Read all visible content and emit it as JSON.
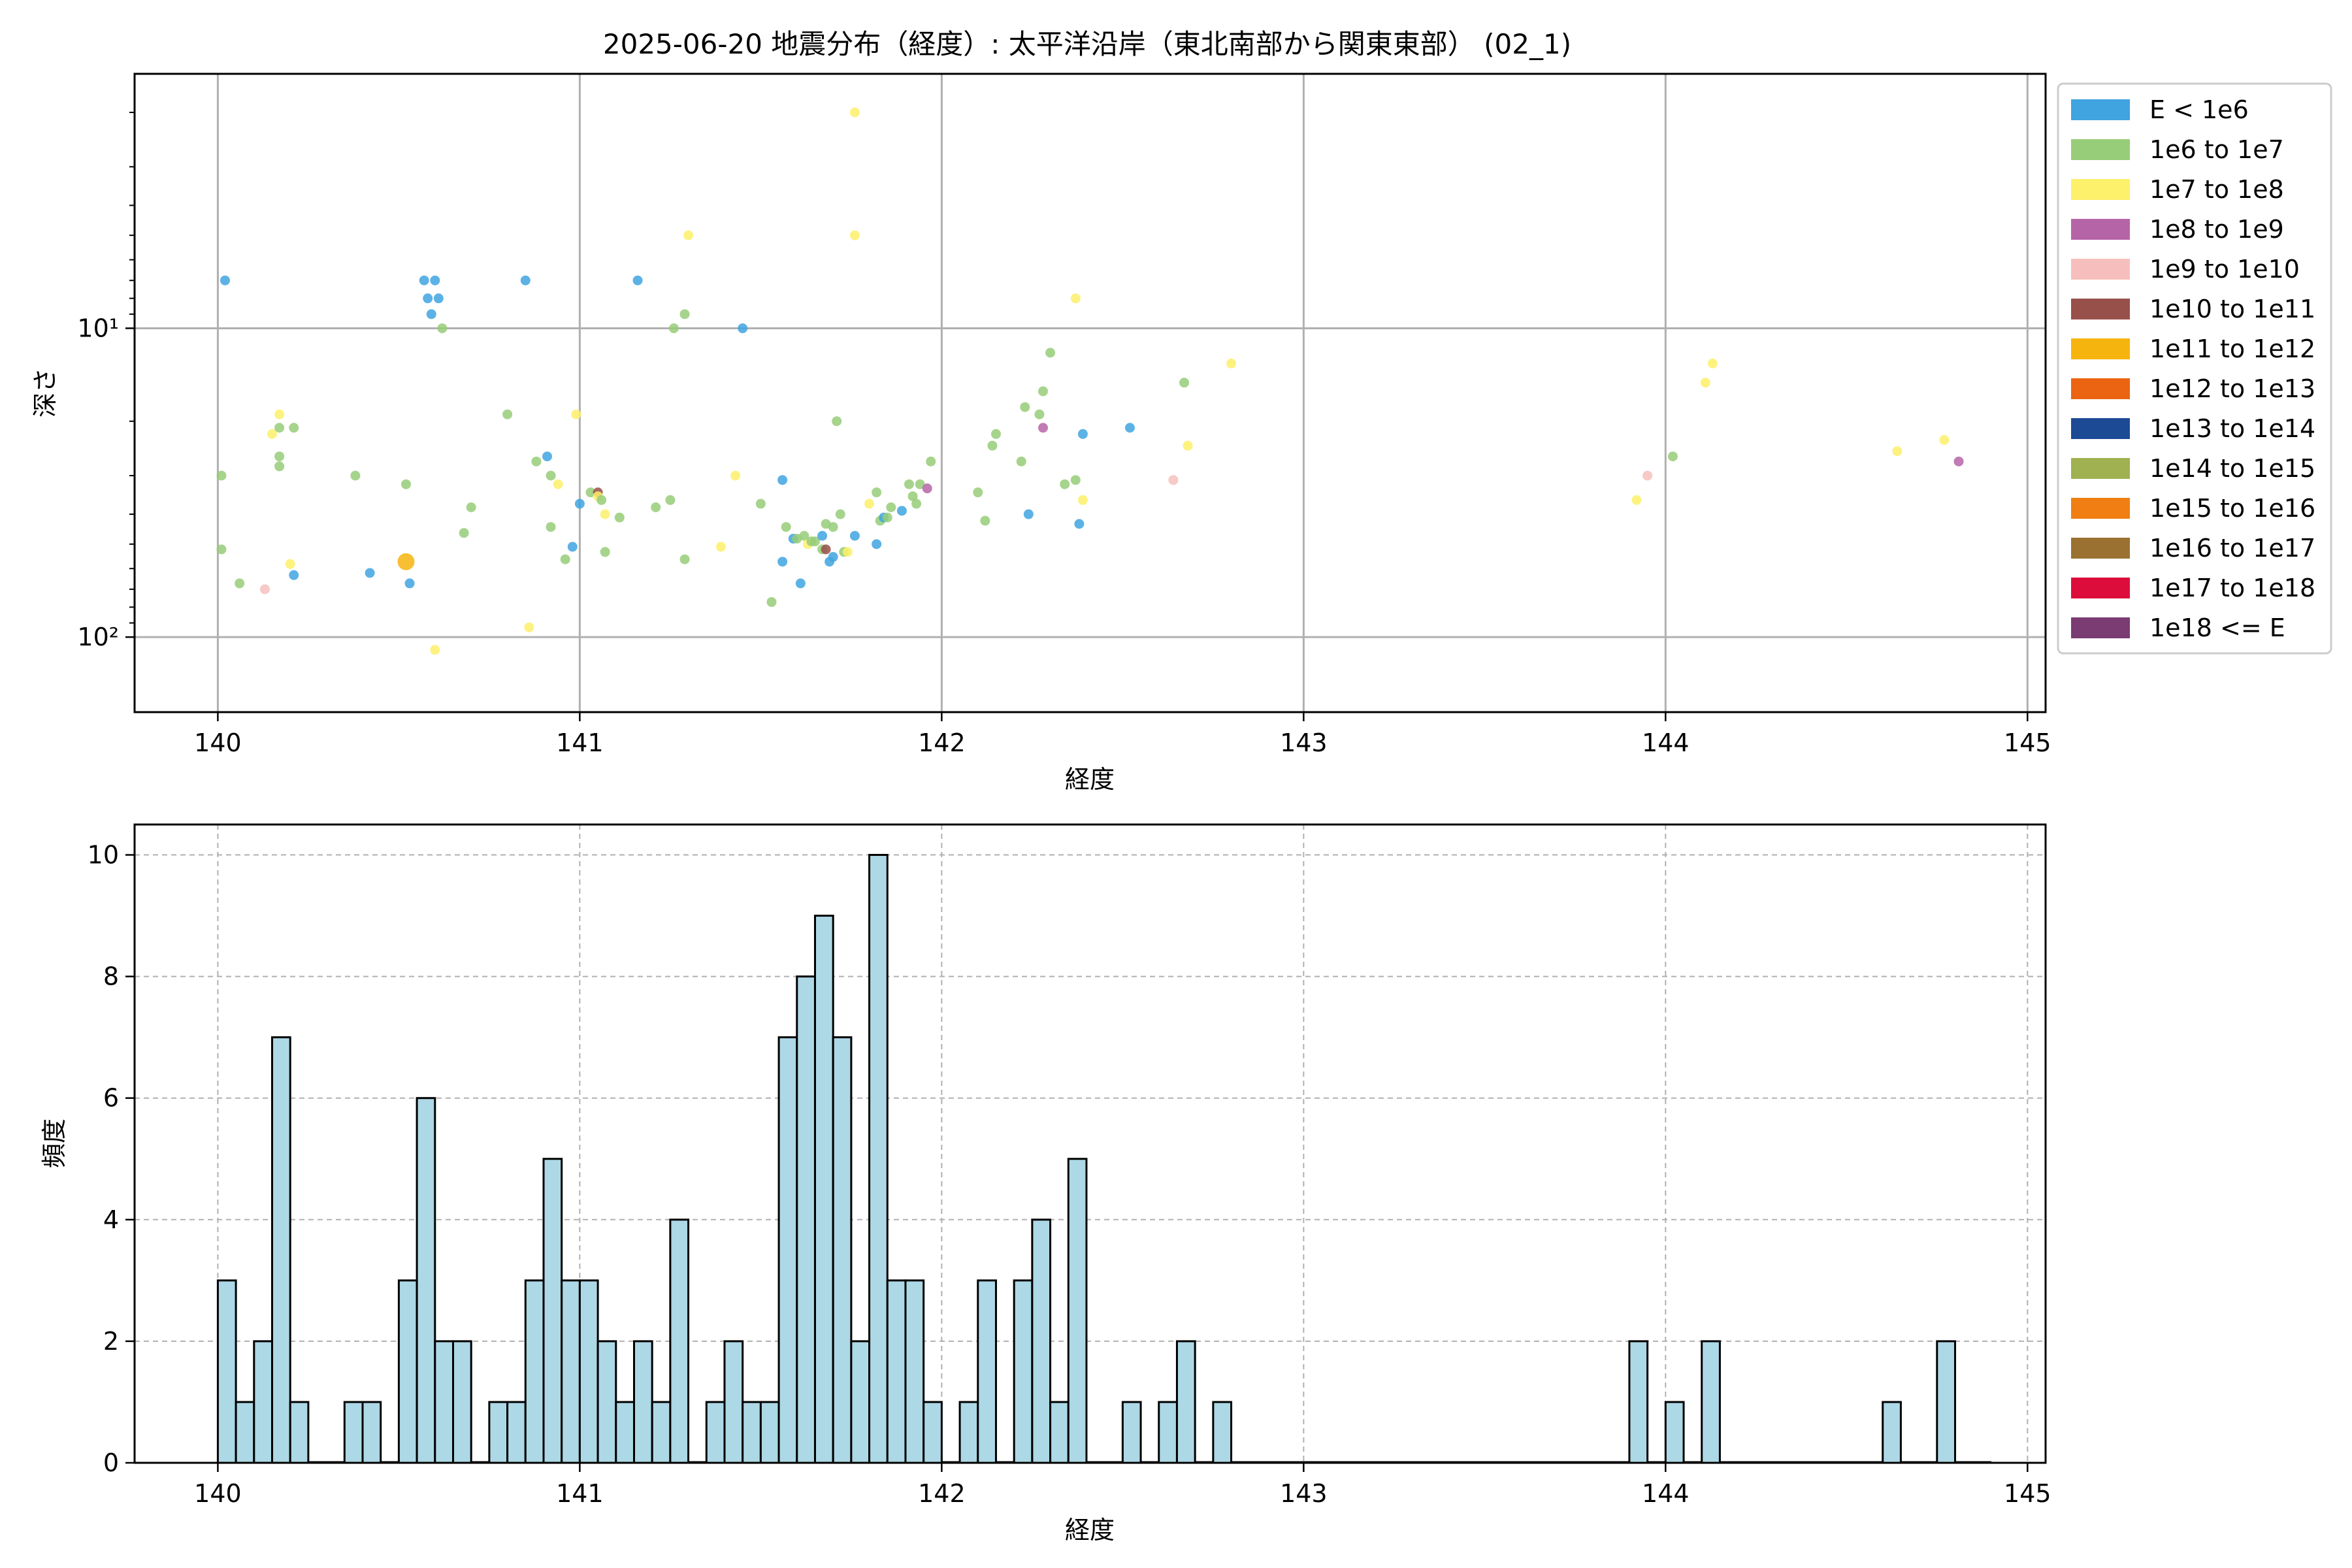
{
  "chart_data": [
    {
      "type": "scatter",
      "title": "2025-06-20 地震分布（経度）: 太平洋沿岸（東北南部から関東東部） (02_1)",
      "xlabel": "経度",
      "ylabel": "深さ",
      "xlim": [
        139.77,
        145.05
      ],
      "ylim": [
        175,
        1.5
      ],
      "yscale": "log",
      "yaxis_inverted": true,
      "grid": true,
      "x_ticks": [
        "140",
        "141",
        "142",
        "143",
        "144",
        "145"
      ],
      "y_ticks": [
        {
          "value": 10,
          "label": "10¹"
        },
        {
          "value": 100,
          "label": "10²"
        }
      ],
      "legend_position": "outside-right",
      "legend": [
        {
          "label": "E < 1e6",
          "color": "#3fa4e0"
        },
        {
          "label": "1e6 to 1e7",
          "color": "#97cd78"
        },
        {
          "label": "1e7 to 1e8",
          "color": "#fdf06a"
        },
        {
          "label": "1e8 to 1e9",
          "color": "#b664a8"
        },
        {
          "label": "1e9 to 1e10",
          "color": "#f6bfbd"
        },
        {
          "label": "1e10 to 1e11",
          "color": "#98504a"
        },
        {
          "label": "1e11 to 1e12",
          "color": "#f6b40e"
        },
        {
          "label": "1e12 to 1e13",
          "color": "#ea6412"
        },
        {
          "label": "1e13 to 1e14",
          "color": "#1c4a94"
        },
        {
          "label": "1e14 to 1e15",
          "color": "#9fb150"
        },
        {
          "label": "1e15 to 1e16",
          "color": "#f07e12"
        },
        {
          "label": "1e16 to 1e17",
          "color": "#9a7131"
        },
        {
          "label": "1e17 to 1e18",
          "color": "#dd0d3b"
        },
        {
          "label": "1e18 <= E",
          "color": "#7a3c72"
        }
      ],
      "points": [
        {
          "x": 140.02,
          "y": 7.0,
          "c": 0
        },
        {
          "x": 140.01,
          "y": 30,
          "c": 1
        },
        {
          "x": 140.01,
          "y": 52,
          "c": 1
        },
        {
          "x": 140.06,
          "y": 67,
          "c": 1
        },
        {
          "x": 140.13,
          "y": 70,
          "c": 4
        },
        {
          "x": 140.15,
          "y": 22,
          "c": 2
        },
        {
          "x": 140.17,
          "y": 19,
          "c": 2
        },
        {
          "x": 140.17,
          "y": 21,
          "c": 1
        },
        {
          "x": 140.17,
          "y": 26,
          "c": 1
        },
        {
          "x": 140.17,
          "y": 28,
          "c": 1
        },
        {
          "x": 140.2,
          "y": 58,
          "c": 2
        },
        {
          "x": 140.21,
          "y": 63,
          "c": 0
        },
        {
          "x": 140.21,
          "y": 21,
          "c": 1
        },
        {
          "x": 140.38,
          "y": 30,
          "c": 1
        },
        {
          "x": 140.42,
          "y": 62,
          "c": 0
        },
        {
          "x": 140.52,
          "y": 57,
          "c": 6,
          "big": true
        },
        {
          "x": 140.52,
          "y": 32,
          "c": 1
        },
        {
          "x": 140.53,
          "y": 67,
          "c": 0
        },
        {
          "x": 140.57,
          "y": 7.0,
          "c": 0
        },
        {
          "x": 140.58,
          "y": 8.0,
          "c": 0
        },
        {
          "x": 140.59,
          "y": 9.0,
          "c": 0
        },
        {
          "x": 140.6,
          "y": 7.0,
          "c": 0
        },
        {
          "x": 140.61,
          "y": 8.0,
          "c": 0
        },
        {
          "x": 140.62,
          "y": 10.0,
          "c": 1
        },
        {
          "x": 140.6,
          "y": 110,
          "c": 2
        },
        {
          "x": 140.68,
          "y": 46,
          "c": 1
        },
        {
          "x": 140.7,
          "y": 38,
          "c": 1
        },
        {
          "x": 140.8,
          "y": 19,
          "c": 1
        },
        {
          "x": 140.85,
          "y": 7.0,
          "c": 0
        },
        {
          "x": 140.86,
          "y": 93,
          "c": 2
        },
        {
          "x": 140.88,
          "y": 27,
          "c": 1
        },
        {
          "x": 140.91,
          "y": 26,
          "c": 0
        },
        {
          "x": 140.92,
          "y": 30,
          "c": 1
        },
        {
          "x": 140.92,
          "y": 44,
          "c": 1
        },
        {
          "x": 140.94,
          "y": 32,
          "c": 2
        },
        {
          "x": 140.96,
          "y": 56,
          "c": 1
        },
        {
          "x": 140.98,
          "y": 51,
          "c": 0
        },
        {
          "x": 140.99,
          "y": 19,
          "c": 2
        },
        {
          "x": 141.0,
          "y": 37,
          "c": 0
        },
        {
          "x": 141.03,
          "y": 34,
          "c": 1
        },
        {
          "x": 141.05,
          "y": 34,
          "c": 5
        },
        {
          "x": 141.05,
          "y": 35,
          "c": 2
        },
        {
          "x": 141.06,
          "y": 36,
          "c": 1
        },
        {
          "x": 141.07,
          "y": 40,
          "c": 2
        },
        {
          "x": 141.07,
          "y": 53,
          "c": 1
        },
        {
          "x": 141.11,
          "y": 41,
          "c": 1
        },
        {
          "x": 141.16,
          "y": 7.0,
          "c": 0
        },
        {
          "x": 141.21,
          "y": 38,
          "c": 1
        },
        {
          "x": 141.25,
          "y": 36,
          "c": 1
        },
        {
          "x": 141.26,
          "y": 10.0,
          "c": 1
        },
        {
          "x": 141.29,
          "y": 9.0,
          "c": 1
        },
        {
          "x": 141.29,
          "y": 56,
          "c": 1
        },
        {
          "x": 141.3,
          "y": 5.0,
          "c": 2
        },
        {
          "x": 141.39,
          "y": 51,
          "c": 2
        },
        {
          "x": 141.43,
          "y": 30,
          "c": 2
        },
        {
          "x": 141.45,
          "y": 10.0,
          "c": 0
        },
        {
          "x": 141.5,
          "y": 37,
          "c": 1
        },
        {
          "x": 141.53,
          "y": 77,
          "c": 1
        },
        {
          "x": 141.56,
          "y": 31,
          "c": 0
        },
        {
          "x": 141.56,
          "y": 57,
          "c": 0
        },
        {
          "x": 141.57,
          "y": 44,
          "c": 1
        },
        {
          "x": 141.59,
          "y": 48,
          "c": 0
        },
        {
          "x": 141.6,
          "y": 48,
          "c": 1
        },
        {
          "x": 141.61,
          "y": 67,
          "c": 0
        },
        {
          "x": 141.62,
          "y": 47,
          "c": 1
        },
        {
          "x": 141.63,
          "y": 50,
          "c": 2
        },
        {
          "x": 141.64,
          "y": 49,
          "c": 1
        },
        {
          "x": 141.65,
          "y": 49,
          "c": 1
        },
        {
          "x": 141.67,
          "y": 52,
          "c": 1
        },
        {
          "x": 141.67,
          "y": 47,
          "c": 0
        },
        {
          "x": 141.68,
          "y": 43,
          "c": 1
        },
        {
          "x": 141.68,
          "y": 52,
          "c": 5
        },
        {
          "x": 141.69,
          "y": 57,
          "c": 0
        },
        {
          "x": 141.7,
          "y": 55,
          "c": 0
        },
        {
          "x": 141.7,
          "y": 44,
          "c": 1
        },
        {
          "x": 141.71,
          "y": 20,
          "c": 1
        },
        {
          "x": 141.72,
          "y": 40,
          "c": 1
        },
        {
          "x": 141.73,
          "y": 53,
          "c": 1
        },
        {
          "x": 141.74,
          "y": 53,
          "c": 2
        },
        {
          "x": 141.76,
          "y": 47,
          "c": 0
        },
        {
          "x": 141.76,
          "y": 2.0,
          "c": 2
        },
        {
          "x": 141.76,
          "y": 5.0,
          "c": 2
        },
        {
          "x": 141.8,
          "y": 37,
          "c": 2
        },
        {
          "x": 141.82,
          "y": 34,
          "c": 1
        },
        {
          "x": 141.83,
          "y": 42,
          "c": 1
        },
        {
          "x": 141.84,
          "y": 41,
          "c": 0
        },
        {
          "x": 141.82,
          "y": 50,
          "c": 0
        },
        {
          "x": 141.85,
          "y": 41,
          "c": 1
        },
        {
          "x": 141.86,
          "y": 38,
          "c": 1
        },
        {
          "x": 141.89,
          "y": 39,
          "c": 0
        },
        {
          "x": 141.91,
          "y": 32,
          "c": 1
        },
        {
          "x": 141.92,
          "y": 35,
          "c": 1
        },
        {
          "x": 141.93,
          "y": 37,
          "c": 1
        },
        {
          "x": 141.94,
          "y": 32,
          "c": 1
        },
        {
          "x": 141.96,
          "y": 33,
          "c": 3
        },
        {
          "x": 141.97,
          "y": 27,
          "c": 1
        },
        {
          "x": 142.1,
          "y": 34,
          "c": 1
        },
        {
          "x": 142.12,
          "y": 42,
          "c": 1
        },
        {
          "x": 142.14,
          "y": 24,
          "c": 1
        },
        {
          "x": 142.15,
          "y": 22,
          "c": 1
        },
        {
          "x": 142.22,
          "y": 27,
          "c": 1
        },
        {
          "x": 142.23,
          "y": 18,
          "c": 1
        },
        {
          "x": 142.24,
          "y": 40,
          "c": 0
        },
        {
          "x": 142.27,
          "y": 19,
          "c": 1
        },
        {
          "x": 142.28,
          "y": 16,
          "c": 1
        },
        {
          "x": 142.28,
          "y": 21,
          "c": 3
        },
        {
          "x": 142.3,
          "y": 12,
          "c": 1
        },
        {
          "x": 142.34,
          "y": 32,
          "c": 1
        },
        {
          "x": 142.37,
          "y": 31,
          "c": 1
        },
        {
          "x": 142.37,
          "y": 8.0,
          "c": 2
        },
        {
          "x": 142.38,
          "y": 43,
          "c": 0
        },
        {
          "x": 142.39,
          "y": 22,
          "c": 0
        },
        {
          "x": 142.39,
          "y": 36,
          "c": 2
        },
        {
          "x": 142.52,
          "y": 21,
          "c": 0
        },
        {
          "x": 142.64,
          "y": 31,
          "c": 4
        },
        {
          "x": 142.67,
          "y": 15,
          "c": 1
        },
        {
          "x": 142.68,
          "y": 24,
          "c": 2
        },
        {
          "x": 142.8,
          "y": 13,
          "c": 2
        },
        {
          "x": 143.92,
          "y": 36,
          "c": 2
        },
        {
          "x": 143.95,
          "y": 30,
          "c": 4
        },
        {
          "x": 144.02,
          "y": 26,
          "c": 1
        },
        {
          "x": 144.11,
          "y": 15,
          "c": 2
        },
        {
          "x": 144.13,
          "y": 13,
          "c": 2
        },
        {
          "x": 144.64,
          "y": 25,
          "c": 2
        },
        {
          "x": 144.77,
          "y": 23,
          "c": 2
        },
        {
          "x": 144.81,
          "y": 27,
          "c": 3
        }
      ]
    },
    {
      "type": "bar",
      "title": "",
      "xlabel": "経度",
      "ylabel": "頻度",
      "xlim": [
        139.77,
        145.05
      ],
      "ylim": [
        0,
        10.5
      ],
      "bin_width": 0.05,
      "grid": true,
      "x_ticks": [
        "140",
        "141",
        "142",
        "143",
        "144",
        "145"
      ],
      "y_ticks": [
        "0",
        "2",
        "4",
        "6",
        "8",
        "10"
      ],
      "bar_color": "#add8e6",
      "bins": [
        {
          "x0": 140.0,
          "v": 3
        },
        {
          "x0": 140.05,
          "v": 1
        },
        {
          "x0": 140.1,
          "v": 2
        },
        {
          "x0": 140.15,
          "v": 7
        },
        {
          "x0": 140.2,
          "v": 1
        },
        {
          "x0": 140.35,
          "v": 1
        },
        {
          "x0": 140.4,
          "v": 1
        },
        {
          "x0": 140.5,
          "v": 3
        },
        {
          "x0": 140.55,
          "v": 6
        },
        {
          "x0": 140.6,
          "v": 2
        },
        {
          "x0": 140.65,
          "v": 2
        },
        {
          "x0": 140.75,
          "v": 1
        },
        {
          "x0": 140.8,
          "v": 1
        },
        {
          "x0": 140.85,
          "v": 3
        },
        {
          "x0": 140.9,
          "v": 5
        },
        {
          "x0": 140.95,
          "v": 3
        },
        {
          "x0": 141.0,
          "v": 3
        },
        {
          "x0": 141.05,
          "v": 2
        },
        {
          "x0": 141.1,
          "v": 1
        },
        {
          "x0": 141.15,
          "v": 2
        },
        {
          "x0": 141.2,
          "v": 1
        },
        {
          "x0": 141.25,
          "v": 4
        },
        {
          "x0": 141.35,
          "v": 1
        },
        {
          "x0": 141.4,
          "v": 2
        },
        {
          "x0": 141.45,
          "v": 1
        },
        {
          "x0": 141.5,
          "v": 1
        },
        {
          "x0": 141.55,
          "v": 7
        },
        {
          "x0": 141.6,
          "v": 8
        },
        {
          "x0": 141.65,
          "v": 9
        },
        {
          "x0": 141.7,
          "v": 7
        },
        {
          "x0": 141.75,
          "v": 2
        },
        {
          "x0": 141.8,
          "v": 10
        },
        {
          "x0": 141.85,
          "v": 3
        },
        {
          "x0": 141.9,
          "v": 3
        },
        {
          "x0": 141.95,
          "v": 1
        },
        {
          "x0": 142.05,
          "v": 1
        },
        {
          "x0": 142.1,
          "v": 3
        },
        {
          "x0": 142.2,
          "v": 3
        },
        {
          "x0": 142.25,
          "v": 4
        },
        {
          "x0": 142.3,
          "v": 1
        },
        {
          "x0": 142.35,
          "v": 5
        },
        {
          "x0": 142.5,
          "v": 1
        },
        {
          "x0": 142.6,
          "v": 1
        },
        {
          "x0": 142.65,
          "v": 2
        },
        {
          "x0": 142.75,
          "v": 1
        },
        {
          "x0": 143.9,
          "v": 2
        },
        {
          "x0": 144.0,
          "v": 1
        },
        {
          "x0": 144.1,
          "v": 2
        },
        {
          "x0": 144.6,
          "v": 1
        },
        {
          "x0": 144.75,
          "v": 2
        }
      ]
    }
  ]
}
